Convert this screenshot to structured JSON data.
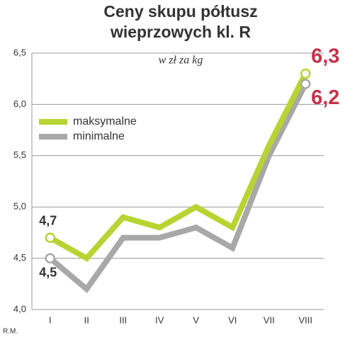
{
  "chart_data": {
    "type": "line",
    "title": [
      "Ceny skupu półtusz",
      "wieprzowych kl. R"
    ],
    "subtitle": "w zł za kg",
    "credit": "R.M.",
    "categories": [
      "I",
      "II",
      "III",
      "IV",
      "V",
      "VI",
      "VII",
      "VIII"
    ],
    "series": [
      {
        "name": "maksymalne",
        "color": "#b8d432",
        "values": [
          4.7,
          4.5,
          4.9,
          4.8,
          5.0,
          4.8,
          5.6,
          6.3
        ],
        "value_labels": [
          "4,7",
          null,
          null,
          null,
          null,
          null,
          null,
          "6,3"
        ]
      },
      {
        "name": "minimalne",
        "color": "#a8a8a8",
        "values": [
          4.5,
          4.2,
          4.7,
          4.7,
          4.8,
          4.6,
          5.5,
          6.2
        ],
        "value_labels": [
          "4,5",
          null,
          null,
          null,
          null,
          null,
          null,
          "6,2"
        ]
      }
    ],
    "ylim": [
      4.0,
      6.5
    ],
    "yticks": [
      {
        "value": 4.0,
        "label": "4,0"
      },
      {
        "value": 4.5,
        "label": "4,5"
      },
      {
        "value": 5.0,
        "label": "5,0"
      },
      {
        "value": 5.5,
        "label": "5,5"
      },
      {
        "value": 6.0,
        "label": "6,0"
      },
      {
        "value": 6.5,
        "label": "6,5"
      }
    ],
    "grid": true
  }
}
